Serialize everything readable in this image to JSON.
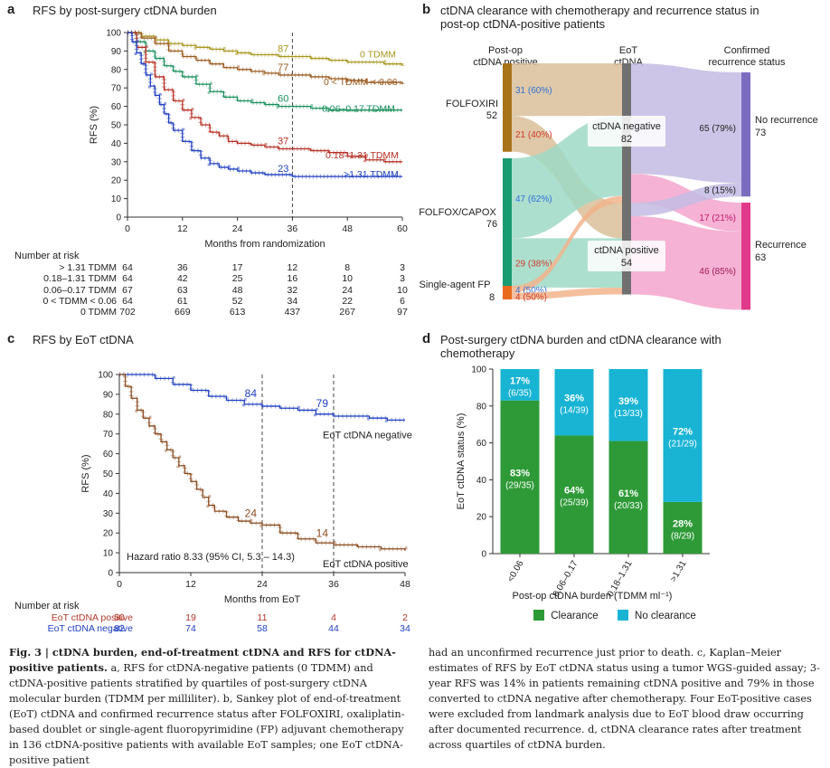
{
  "panel_a": {
    "letter": "a",
    "title": "RFS by post-surgery ctDNA burden",
    "chart_data": {
      "type": "line",
      "title": "RFS by post-surgery ctDNA burden",
      "xlabel": "Months from randomization",
      "ylabel": "RFS (%)",
      "xlim": [
        0,
        60
      ],
      "ylim": [
        0,
        100
      ],
      "xticks": [
        "0",
        "12",
        "24",
        "36",
        "48",
        "60"
      ],
      "yticks": [
        "0",
        "10",
        "20",
        "30",
        "40",
        "50",
        "60",
        "70",
        "80",
        "90",
        "100"
      ],
      "landmark_x": 36,
      "series": [
        {
          "name": "0 TDMM",
          "color": "#a7961c",
          "label_at_36": "87",
          "x": [
            0,
            3,
            6,
            9,
            12,
            15,
            18,
            21,
            24,
            27,
            30,
            33,
            36,
            40,
            44,
            48,
            52,
            56,
            60
          ],
          "y": [
            100,
            98,
            96,
            94,
            93,
            92,
            91,
            90,
            89,
            88,
            88,
            87,
            87,
            86,
            85,
            84,
            84,
            83,
            82
          ]
        },
        {
          "name": "0 < TDMM < 0.06",
          "color": "#9a5a1e",
          "label_at_36": "77",
          "x": [
            0,
            3,
            6,
            9,
            12,
            15,
            18,
            21,
            24,
            27,
            30,
            33,
            36,
            40,
            44,
            48,
            52,
            56,
            60
          ],
          "y": [
            100,
            97,
            94,
            90,
            87,
            85,
            83,
            81,
            80,
            79,
            78,
            77,
            77,
            76,
            75,
            74,
            73,
            73,
            72
          ]
        },
        {
          "name": "0.06–0.17 TDMM",
          "color": "#1a8f5c",
          "label_at_36": "60",
          "x": [
            0,
            2,
            4,
            6,
            8,
            10,
            12,
            15,
            18,
            21,
            24,
            27,
            30,
            33,
            36,
            40,
            44,
            48,
            52,
            56,
            60
          ],
          "y": [
            100,
            95,
            90,
            86,
            82,
            79,
            76,
            72,
            68,
            65,
            63,
            62,
            61,
            60,
            60,
            59,
            58,
            58,
            58,
            58,
            58
          ]
        },
        {
          "name": "0.18–1.31 TDMM",
          "color": "#b52f24",
          "label_at_36": "37",
          "x": [
            0,
            2,
            4,
            6,
            8,
            10,
            12,
            14,
            16,
            18,
            20,
            22,
            24,
            27,
            30,
            33,
            36,
            40,
            44,
            48,
            52,
            56,
            60
          ],
          "y": [
            100,
            92,
            84,
            76,
            69,
            63,
            58,
            54,
            50,
            46,
            44,
            41,
            40,
            39,
            38,
            37,
            37,
            36,
            35,
            33,
            31,
            30,
            30
          ]
        },
        {
          "name": ">1.31 TDMM",
          "color": "#1f3fbf",
          "label_at_36": "23",
          "x": [
            0,
            1,
            2,
            3,
            4,
            5,
            6,
            7,
            8,
            9,
            10,
            12,
            14,
            16,
            18,
            20,
            22,
            24,
            27,
            30,
            33,
            36,
            40,
            44,
            48,
            52,
            56,
            60
          ],
          "y": [
            100,
            95,
            89,
            83,
            77,
            71,
            66,
            61,
            56,
            51,
            47,
            41,
            36,
            32,
            29,
            27,
            26,
            25,
            24,
            23,
            23,
            22,
            22,
            22,
            22,
            22,
            22,
            22
          ]
        }
      ]
    },
    "risk_table": {
      "header": "Number at risk",
      "rows": [
        {
          "label": "> 1.31 TDMM",
          "values": [
            "64",
            "36",
            "17",
            "12",
            "8",
            "3"
          ]
        },
        {
          "label": "0.18–1.31 TDMM",
          "values": [
            "64",
            "42",
            "25",
            "16",
            "10",
            "3"
          ]
        },
        {
          "label": "0.06–0.17 TDMM",
          "values": [
            "67",
            "63",
            "48",
            "32",
            "24",
            "10"
          ]
        },
        {
          "label": "0 < TDMM < 0.06",
          "values": [
            "64",
            "61",
            "52",
            "34",
            "22",
            "6"
          ]
        },
        {
          "label": "0 TDMM",
          "values": [
            "702",
            "669",
            "613",
            "437",
            "267",
            "97"
          ]
        }
      ]
    }
  },
  "panel_b": {
    "letter": "b",
    "title_line1": "ctDNA clearance with chemotherapy and recurrence status in",
    "title_line2": "post-op ctDNA-positive patients",
    "col_left": [
      "Post-op",
      "ctDNA positive"
    ],
    "col_mid": [
      "EoT",
      "ctDNA"
    ],
    "col_right": [
      "Confirmed",
      "recurrence status"
    ],
    "chart_data": {
      "type": "sankey",
      "nodes": [
        {
          "name": "FOLFOXIRI",
          "value": 52,
          "color": "#a7741a"
        },
        {
          "name": "FOLFOX/CAPOX",
          "value": 76,
          "color": "#1a9c73"
        },
        {
          "name": "Single-agent FP",
          "value": 8,
          "color": "#e86a1e"
        },
        {
          "name": "ctDNA negative",
          "value": 82,
          "color": "#707070"
        },
        {
          "name": "ctDNA positive",
          "value": 54,
          "color": "#707070"
        },
        {
          "name": "No recurrence",
          "value": 73,
          "color": "#7b6cc0"
        },
        {
          "name": "Recurrence",
          "value": 63,
          "color": "#e23a8a"
        }
      ],
      "links": [
        {
          "source": "FOLFOXIRI",
          "target": "ctDNA negative",
          "value": 31,
          "label": "31 (60%)"
        },
        {
          "source": "FOLFOXIRI",
          "target": "ctDNA positive",
          "value": 21,
          "label": "21 (40%)"
        },
        {
          "source": "FOLFOX/CAPOX",
          "target": "ctDNA negative",
          "value": 47,
          "label": "47 (62%)"
        },
        {
          "source": "FOLFOX/CAPOX",
          "target": "ctDNA positive",
          "value": 29,
          "label": "29 (38%)"
        },
        {
          "source": "Single-agent FP",
          "target": "ctDNA negative",
          "value": 4,
          "label": "4 (50%)"
        },
        {
          "source": "Single-agent FP",
          "target": "ctDNA positive",
          "value": 4,
          "label": "4 (50%)"
        },
        {
          "source": "ctDNA negative",
          "target": "No recurrence",
          "value": 65,
          "label": "65 (79%)"
        },
        {
          "source": "ctDNA negative",
          "target": "Recurrence",
          "value": 17,
          "label": "17 (21%)"
        },
        {
          "source": "ctDNA positive",
          "target": "No recurrence",
          "value": 8,
          "label": "8 (15%)"
        },
        {
          "source": "ctDNA positive",
          "target": "Recurrence",
          "value": 46,
          "label": "46 (85%)"
        }
      ]
    }
  },
  "panel_c": {
    "letter": "c",
    "title": "RFS by EoT ctDNA",
    "hazard_text": "Hazard ratio 8.33 (95% CI, 5.3 – 14.3)",
    "chart_data": {
      "type": "line",
      "title": "RFS by EoT ctDNA",
      "xlabel": "Months from EoT",
      "ylabel": "RFS (%)",
      "xlim": [
        0,
        48
      ],
      "ylim": [
        0,
        100
      ],
      "xticks": [
        "0",
        "12",
        "24",
        "36",
        "48"
      ],
      "yticks": [
        "0",
        "10",
        "20",
        "30",
        "40",
        "50",
        "60",
        "70",
        "80",
        "90",
        "100"
      ],
      "landmarks_x": [
        24,
        36
      ],
      "series": [
        {
          "name": "EoT ctDNA negative",
          "color": "#1f3fbf",
          "labels": [
            {
              "x": 24,
              "text": "84"
            },
            {
              "x": 36,
              "text": "79"
            }
          ],
          "x": [
            0,
            3,
            6,
            9,
            12,
            15,
            18,
            21,
            24,
            27,
            30,
            33,
            36,
            39,
            42,
            45,
            48
          ],
          "y": [
            100,
            100,
            98,
            95,
            92,
            89,
            87,
            85,
            84,
            83,
            82,
            80,
            79,
            79,
            78,
            77,
            77
          ]
        },
        {
          "name": "EoT ctDNA positive",
          "color": "#8a4b1f",
          "labels": [
            {
              "x": 24,
              "text": "24"
            },
            {
              "x": 36,
              "text": "14"
            }
          ],
          "x": [
            0,
            1,
            2,
            3,
            4,
            5,
            6,
            7,
            8,
            9,
            10,
            11,
            12,
            13,
            14,
            15,
            16,
            18,
            20,
            22,
            24,
            27,
            30,
            33,
            36,
            40,
            44,
            48
          ],
          "y": [
            100,
            94,
            88,
            82,
            78,
            74,
            70,
            66,
            62,
            58,
            54,
            50,
            46,
            42,
            38,
            34,
            31,
            28,
            26,
            25,
            24,
            20,
            17,
            15,
            14,
            13,
            12,
            11
          ]
        }
      ]
    },
    "risk_table": {
      "header": "Number at risk",
      "rows": [
        {
          "label": "EoT ctDNA positive",
          "color": "#b2382a",
          "values": [
            "50",
            "19",
            "11",
            "4",
            "2"
          ]
        },
        {
          "label": "EoT ctDNA negative",
          "color": "#1f3fbf",
          "values": [
            "82",
            "74",
            "58",
            "44",
            "34"
          ]
        }
      ]
    }
  },
  "panel_d": {
    "letter": "d",
    "title_line1": "Post-surgery ctDNA burden and ctDNA clearance with",
    "title_line2": "chemotherapy",
    "chart_data": {
      "type": "bar",
      "stacked": true,
      "title": "Post-surgery ctDNA burden and ctDNA clearance with chemotherapy",
      "xlabel": "Post-op ctDNA burden (TDMM ml⁻¹)",
      "ylabel": "EoT ctDNA status (%)",
      "ylim": [
        0,
        100
      ],
      "yticks": [
        "0",
        "20",
        "40",
        "60",
        "80",
        "100"
      ],
      "categories": [
        "<0.06",
        "0.06–0.17",
        "0.18–1.31",
        ">1.31"
      ],
      "series": [
        {
          "name": "Clearance",
          "color": "#2e9a37",
          "values": [
            83,
            64,
            61,
            28
          ],
          "pct_labels": [
            "83%",
            "64%",
            "61%",
            "28%"
          ],
          "count_labels": [
            "(29/35)",
            "(25/39)",
            "(20/33)",
            "(8/29)"
          ]
        },
        {
          "name": "No clearance",
          "color": "#19b4d4",
          "values": [
            17,
            36,
            39,
            72
          ],
          "pct_labels": [
            "17%",
            "36%",
            "39%",
            "72%"
          ],
          "count_labels": [
            "(6/35)",
            "(14/39)",
            "(13/33)",
            "(21/29)"
          ]
        }
      ],
      "legend": [
        "Clearance",
        "No clearance"
      ]
    }
  },
  "caption": {
    "left_bold": "Fig. 3 | ctDNA burden, end-of-treatment ctDNA and RFS for ctDNA-positive patients.",
    "left_rest": " a, RFS for ctDNA-negative patients (0 TDMM) and ctDNA-positive patients stratified by quartiles of post-surgery ctDNA molecular burden (TDMM per milliliter). b, Sankey plot of end-of-treatment (EoT) ctDNA and confirmed recurrence status after FOLFOXIRI, oxaliplatin-based doublet or single-agent fluoropyrimidine (FP) adjuvant chemotherapy in 136 ctDNA-positive patients with available EoT samples; one EoT ctDNA-positive patient",
    "right": "had an unconfirmed recurrence just prior to death. c, Kaplan–Meier estimates of RFS by EoT ctDNA status using a tumor WGS-guided assay; 3-year RFS was 14% in patients remaining ctDNA positive and 79% in those converted to ctDNA negative after chemotherapy. Four EoT-positive cases were excluded from landmark analysis due to EoT blood draw occurring after documented recurrence. d, ctDNA clearance rates after treatment across quartiles of ctDNA burden."
  }
}
